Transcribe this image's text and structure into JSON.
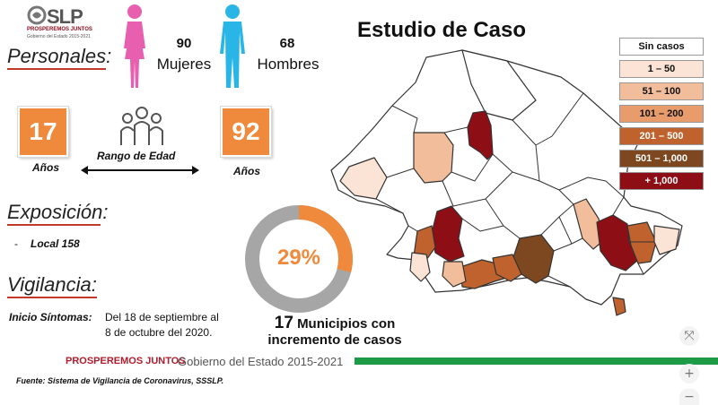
{
  "logo": {
    "brand": "SLP",
    "slogan": "PROSPEREMOS JUNTOS",
    "gov": "Gobierno del Estado 2015-2021"
  },
  "personales": {
    "heading": "Personales:",
    "women": {
      "count": "90",
      "label": "Mujeres",
      "color": "#e85fb0"
    },
    "men": {
      "count": "68",
      "label": "Hombres",
      "color": "#29b6e6"
    }
  },
  "age": {
    "min": "17",
    "max": "92",
    "unit": "Años",
    "range_label": "Rango de Edad",
    "box_color": "#ef8a3c"
  },
  "exposicion": {
    "heading": "Exposición:",
    "dash": "-",
    "item": "Local  158"
  },
  "vigilancia": {
    "heading": "Vigilancia:",
    "label": "Inicio Síntomas:",
    "line1": "Del 18 de septiembre al",
    "line2": "8 de octubre del 2020."
  },
  "donut": {
    "value": 29,
    "label": "29%",
    "accent": "#ef8a3c",
    "rest": "#a6a6a6"
  },
  "increment": {
    "count": "17",
    "line1_rest": "Municipios con",
    "line2": "incremento de casos"
  },
  "title": "Estudio de Caso",
  "legend": [
    {
      "label": "Sin casos",
      "color": "#ffffff",
      "text": "#111111"
    },
    {
      "label": "1 – 50",
      "color": "#fbe3d5",
      "text": "#111111"
    },
    {
      "label": "51 – 100",
      "color": "#f2bd9a",
      "text": "#111111"
    },
    {
      "label": "101 – 200",
      "color": "#e89b6b",
      "text": "#111111"
    },
    {
      "label": "201 – 500",
      "color": "#c0622d",
      "text": "#ffffff"
    },
    {
      "label": "501 – 1,000",
      "color": "#7d4820",
      "text": "#ffffff"
    },
    {
      "label": "+ 1,000",
      "color": "#8e0e16",
      "text": "#ffffff"
    }
  ],
  "footer": {
    "brand": "PROSPEREMOS JUNTOS",
    "gov": "Gobierno del Estado 2015-2021",
    "source": "Fuente: Sistema de Vigilancia de Coronavirus, SSSLP."
  },
  "controls": {
    "fit": "⤧",
    "zoom_in": "+",
    "zoom_out": "−"
  }
}
